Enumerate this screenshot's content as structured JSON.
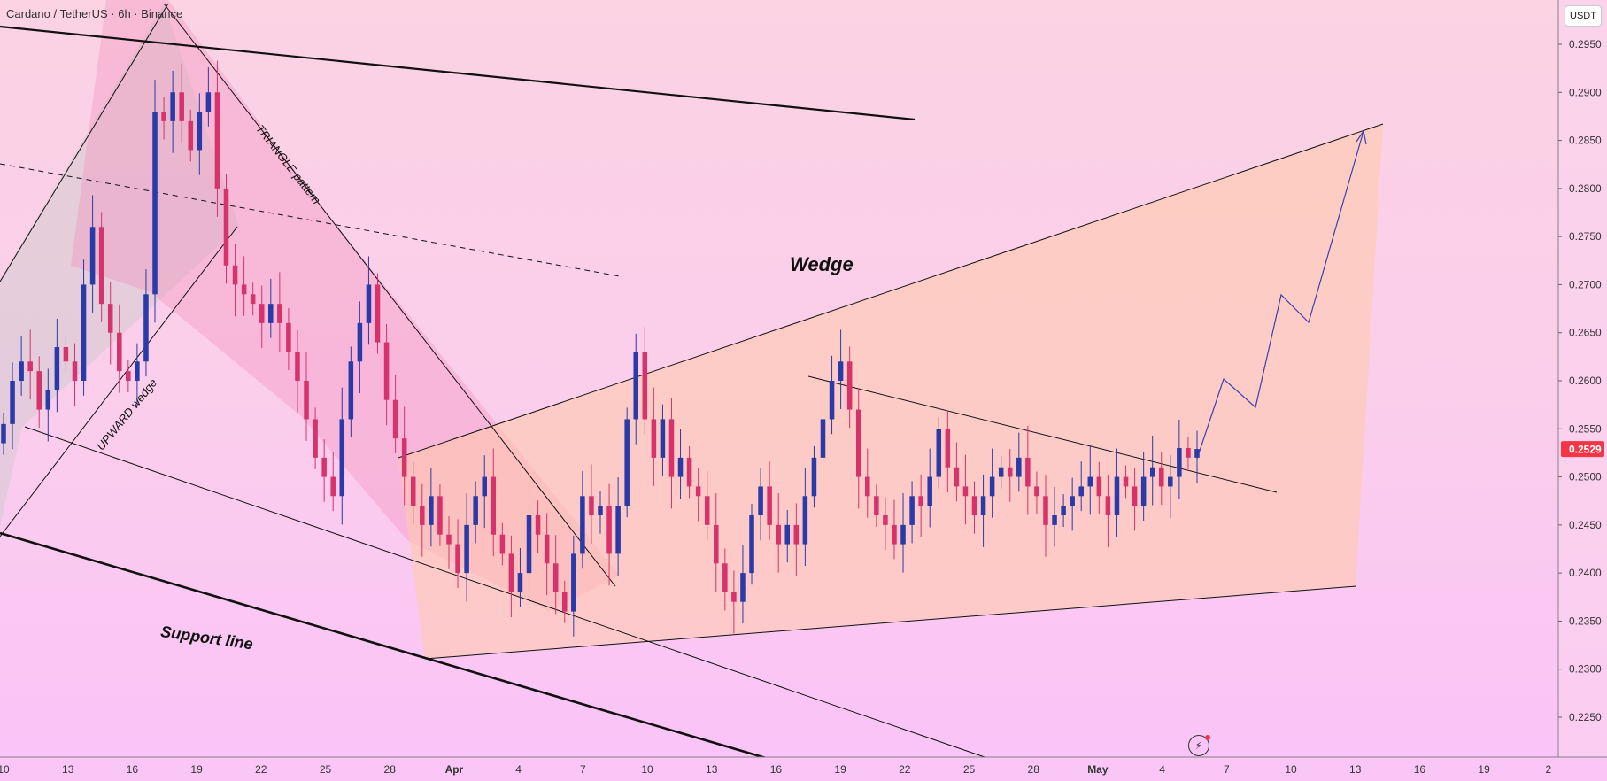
{
  "header": {
    "title": "Cardano / TetherUS · 6h · Binance"
  },
  "currency_button": "USDT",
  "last_price": {
    "label": "0.2529",
    "value": 0.2529,
    "color": "#f23645"
  },
  "colors": {
    "up": "#2a3aa8",
    "down": "#d6336c",
    "wedge_fill": "#ffcba8",
    "triangle_fill": "#f48bbb",
    "upward_channel_fill": "#c9c9c9"
  },
  "annotations": {
    "wedge": "Wedge",
    "support": "Support line",
    "triangle": "TRIANGLE pattern",
    "upward_wedge": "UPWARD wedge"
  },
  "chart_data": {
    "type": "candlestick",
    "title": "Cardano / TetherUS · 6h · Binance",
    "y_axis": {
      "position": "right",
      "ticks": [
        "0.2950",
        "0.2900",
        "0.2850",
        "0.2800",
        "0.2750",
        "0.2700",
        "0.2650",
        "0.2600",
        "0.2550",
        "0.2500",
        "0.2450",
        "0.2400",
        "0.2350",
        "0.2300",
        "0.2250"
      ],
      "range": [
        0.2217,
        0.2975
      ]
    },
    "x_axis": {
      "ticks": [
        "10",
        "13",
        "16",
        "19",
        "22",
        "25",
        "28",
        "Apr",
        "4",
        "7",
        "10",
        "13",
        "16",
        "19",
        "22",
        "25",
        "28",
        "May",
        "4",
        "7",
        "10",
        "13",
        "16",
        "19",
        "2"
      ]
    },
    "series_close_approx": [
      0.2555,
      0.26,
      0.262,
      0.261,
      0.257,
      0.259,
      0.2635,
      0.262,
      0.26,
      0.27,
      0.276,
      0.268,
      0.265,
      0.261,
      0.26,
      0.262,
      0.269,
      0.288,
      0.287,
      0.29,
      0.287,
      0.284,
      0.288,
      0.29,
      0.28,
      0.272,
      0.27,
      0.269,
      0.268,
      0.266,
      0.268,
      0.266,
      0.263,
      0.26,
      0.256,
      0.252,
      0.25,
      0.248,
      0.256,
      0.262,
      0.266,
      0.27,
      0.264,
      0.258,
      0.254,
      0.25,
      0.247,
      0.245,
      0.248,
      0.244,
      0.243,
      0.24,
      0.245,
      0.248,
      0.25,
      0.244,
      0.242,
      0.238,
      0.24,
      0.246,
      0.244,
      0.241,
      0.238,
      0.236,
      0.242,
      0.248,
      0.246,
      0.247,
      0.242,
      0.247,
      0.256,
      0.263,
      0.256,
      0.252,
      0.256,
      0.25,
      0.252,
      0.249,
      0.248,
      0.245,
      0.241,
      0.238,
      0.237,
      0.24,
      0.246,
      0.249,
      0.245,
      0.243,
      0.245,
      0.243,
      0.248,
      0.252,
      0.256,
      0.26,
      0.262,
      0.257,
      0.25,
      0.248,
      0.246,
      0.245,
      0.243,
      0.245,
      0.248,
      0.247,
      0.25,
      0.255,
      0.251,
      0.249,
      0.248,
      0.246,
      0.248,
      0.25,
      0.251,
      0.25,
      0.252,
      0.249,
      0.248,
      0.245,
      0.246,
      0.247,
      0.248,
      0.249,
      0.25,
      0.248,
      0.246,
      0.25,
      0.249,
      0.247,
      0.25,
      0.251,
      0.249,
      0.25,
      0.253,
      0.252,
      0.2529
    ],
    "drawings": [
      {
        "name": "wedge",
        "points": [
          [
            "Mar 29",
            0.2532
          ],
          [
            "May 17",
            0.287
          ],
          [
            "May 12",
            0.2405
          ],
          [
            "Mar 30",
            0.233
          ]
        ]
      },
      {
        "name": "projection",
        "points": [
          [
            "May 4",
            0.253
          ],
          [
            "May 6",
            0.2615
          ],
          [
            "May 8",
            0.2585
          ],
          [
            "May 10",
            0.27
          ],
          [
            "May 11",
            0.267
          ],
          [
            "May 13",
            0.2865
          ]
        ]
      }
    ]
  }
}
